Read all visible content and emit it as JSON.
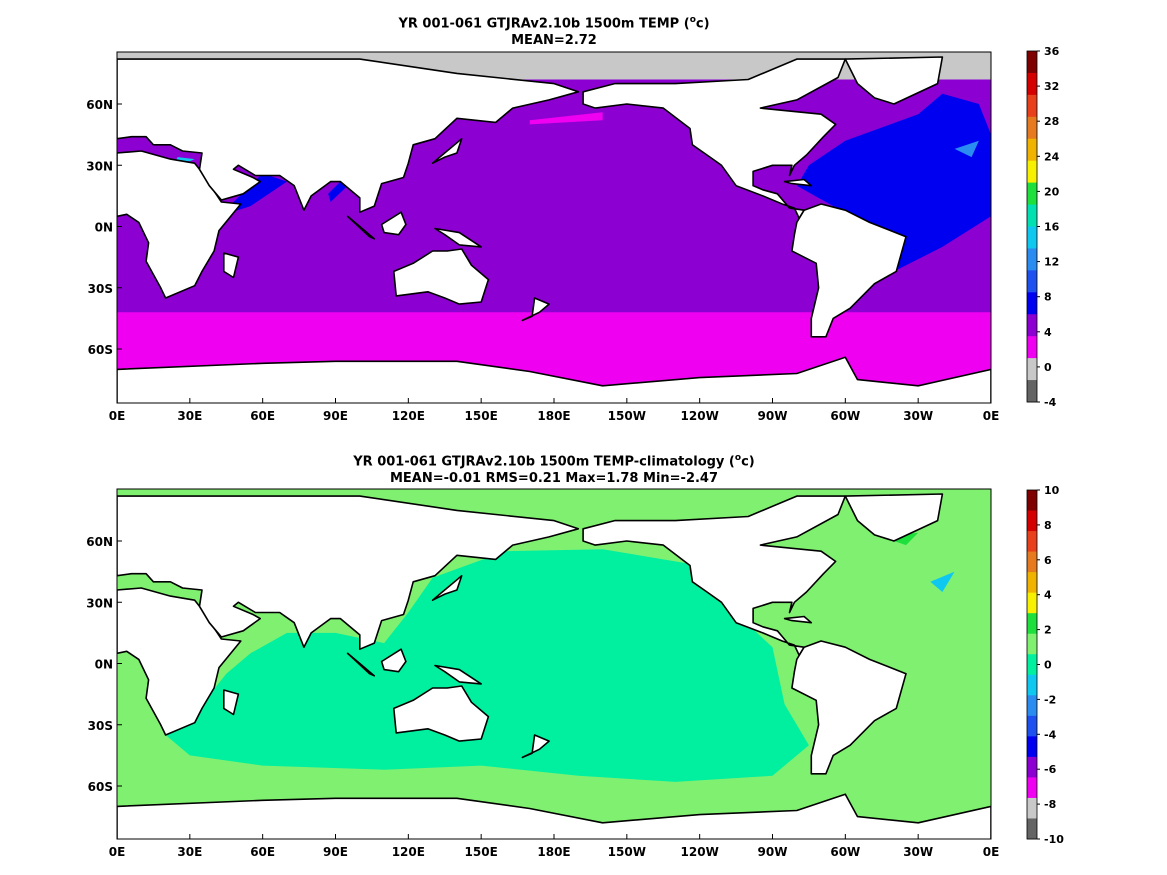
{
  "panels": [
    {
      "title_main": "YR 001-061 GTJRAv2.10b 1500m TEMP (",
      "title_unit": "o",
      "title_end": "c)",
      "stats": "MEAN=2.72",
      "colorbar_ticks": [
        "36",
        "32",
        "28",
        "24",
        "20",
        "16",
        "12",
        "8",
        "4",
        "0",
        "-4"
      ],
      "colorbar_colors": [
        "#7f0000",
        "#d40000",
        "#e8401a",
        "#e67a1e",
        "#f0b400",
        "#f7f000",
        "#1ee03c",
        "#00e0b0",
        "#0fc8f0",
        "#2a8cf0",
        "#1e50f0",
        "#0000f0",
        "#8c00d2",
        "#f000f0",
        "#c8c8c8",
        "#646464"
      ],
      "field_colors": {
        "ice": "#c8c8c8",
        "main": "#8c00d2",
        "south": "#f000f0",
        "atlantic": "#0000f0",
        "blue2": "#2a8cf0",
        "cyan": "#0fc8f0"
      }
    },
    {
      "title_main": "YR 001-061 GTJRAv2.10b 1500m TEMP-climatology (",
      "title_unit": "o",
      "title_end": "c)",
      "stats": "MEAN=-0.01   RMS=0.21   Max=1.78   Min=-2.47",
      "colorbar_ticks": [
        "10",
        "8",
        "6",
        "4",
        "2",
        "0",
        "-2",
        "-4",
        "-6",
        "-8",
        "-10"
      ],
      "colorbar_colors": [
        "#7f0000",
        "#d40000",
        "#e8401a",
        "#e67a1e",
        "#f0b400",
        "#f7f000",
        "#1ee03c",
        "#80f070",
        "#00f0a0",
        "#0fc8f0",
        "#2a8cf0",
        "#1e50f0",
        "#0000f0",
        "#8c00d2",
        "#f000f0",
        "#c8c8c8",
        "#646464"
      ],
      "field_colors": {
        "base": "#80f070",
        "main": "#00f0a0",
        "green": "#1ee03c",
        "cyan": "#0fc8f0"
      }
    }
  ],
  "lon_ticks": [
    "0E",
    "30E",
    "60E",
    "90E",
    "120E",
    "150E",
    "180E",
    "150W",
    "120W",
    "90W",
    "60W",
    "30W",
    "0E"
  ],
  "lat_ticks": [
    "60N",
    "30N",
    "0N",
    "30S",
    "60S"
  ]
}
